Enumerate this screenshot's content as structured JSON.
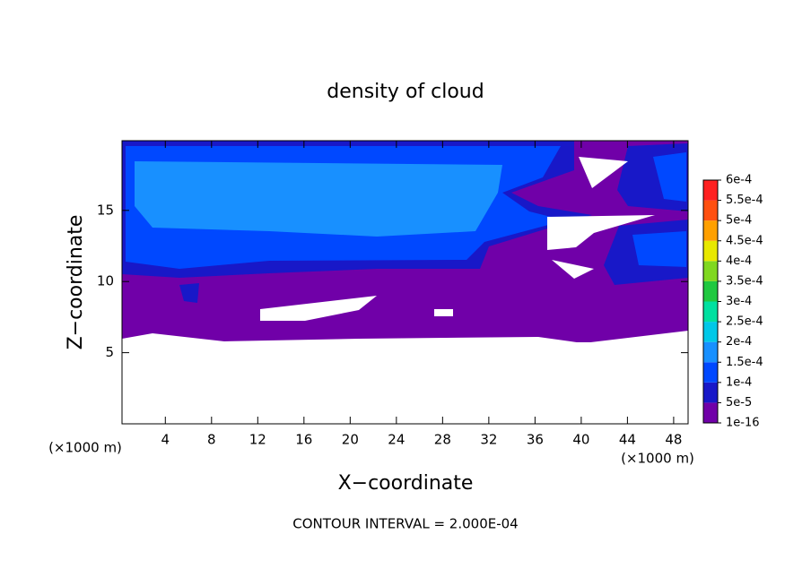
{
  "chart_data": {
    "type": "contour",
    "title": "density of cloud",
    "xlabel": "X−coordinate",
    "ylabel": "Z−coordinate",
    "x_unit_label": "(×1000 m)",
    "x_unit_label_right": "(×1000 m)",
    "annotation": "CONTOUR INTERVAL = 2.000E-04",
    "xlim": [
      0.25,
      49.25
    ],
    "ylim": [
      0,
      19.9
    ],
    "xticks": [
      4,
      8,
      12,
      16,
      20,
      24,
      28,
      32,
      36,
      40,
      44,
      48
    ],
    "yticks": [
      5,
      10,
      15
    ],
    "levels": [
      {
        "value": 1e-16,
        "label": "1e-16"
      },
      {
        "value": 5e-05,
        "label": "5e-5"
      },
      {
        "value": 0.0001,
        "label": "1e-4"
      },
      {
        "value": 0.00015,
        "label": "1.5e-4"
      },
      {
        "value": 0.0002,
        "label": "2e-4"
      },
      {
        "value": 0.00025,
        "label": "2.5e-4"
      },
      {
        "value": 0.0003,
        "label": "3e-4"
      },
      {
        "value": 0.00035,
        "label": "3.5e-4"
      },
      {
        "value": 0.0004,
        "label": "4e-4"
      },
      {
        "value": 0.00045,
        "label": "4.5e-4"
      },
      {
        "value": 0.0005,
        "label": "5e-4"
      },
      {
        "value": 0.00055,
        "label": "5.5e-4"
      },
      {
        "value": 0.0006,
        "label": "6e-4"
      }
    ],
    "colors": [
      "#7000a8",
      "#1818c8",
      "#0048ff",
      "#1890ff",
      "#00c8e8",
      "#00e0a0",
      "#20c840",
      "#80d820",
      "#e8e800",
      "#ffa000",
      "#ff5010",
      "#ff2020"
    ]
  }
}
